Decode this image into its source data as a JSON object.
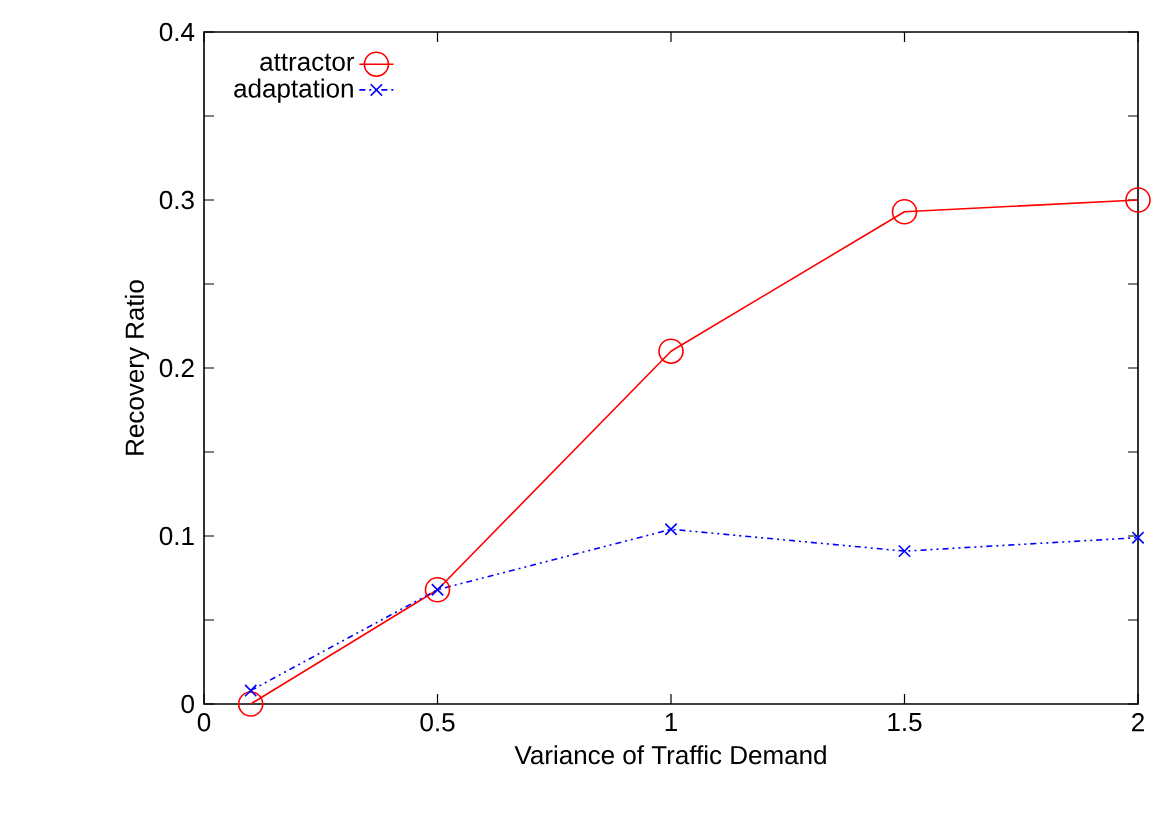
{
  "chart_data": {
    "type": "line",
    "xlabel": "Variance of Traffic Demand",
    "ylabel": "Recovery Ratio",
    "xlim": [
      0,
      2
    ],
    "ylim": [
      0,
      0.4
    ],
    "xticks": [
      0,
      0.5,
      1,
      1.5,
      2
    ],
    "yticks": [
      0,
      {
        "value": 0.05,
        "label": null
      },
      0.1,
      {
        "value": 0.15,
        "label": null
      },
      0.2,
      {
        "value": 0.25,
        "label": null
      },
      0.3,
      {
        "value": 0.35,
        "label": null
      },
      0.4
    ],
    "grid": false,
    "legend": "top left",
    "series": [
      {
        "name": "attractor",
        "color": "#ff0000",
        "marker": "circle",
        "line_style": "solid",
        "x": [
          0.1,
          0.5,
          1,
          1.5,
          2
        ],
        "values": [
          0,
          0.068,
          0.21,
          0.293,
          0.3
        ]
      },
      {
        "name": "adaptation",
        "color": "#0000ff",
        "marker": "cross",
        "line_style": "dotted",
        "x": [
          0.1,
          0.5,
          1,
          1.5,
          2
        ],
        "values": [
          0.008,
          0.068,
          0.104,
          0.091,
          0.099
        ]
      }
    ]
  }
}
